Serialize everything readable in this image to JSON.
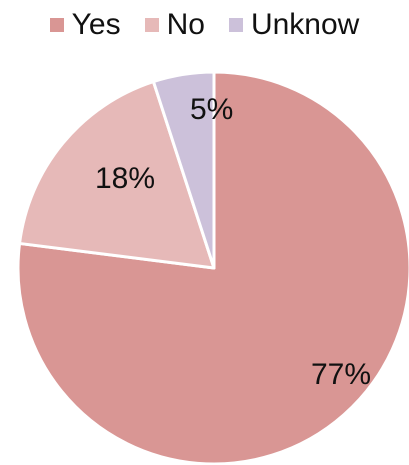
{
  "chart_data": {
    "type": "pie",
    "categories": [
      "Yes",
      "No",
      "Unknow"
    ],
    "values": [
      77,
      18,
      5
    ],
    "labels": [
      "77%",
      "18%",
      "5%"
    ],
    "colors": [
      "#d99694",
      "#e6b9b8",
      "#ccc1da"
    ],
    "legend_position": "top",
    "title": ""
  }
}
